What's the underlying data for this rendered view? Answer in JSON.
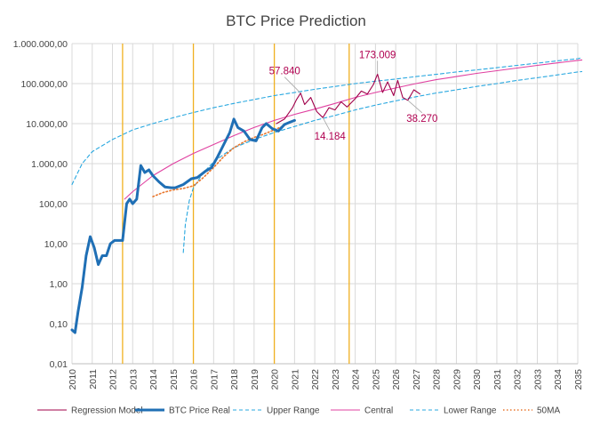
{
  "chart_data": {
    "type": "line",
    "title": "BTC Price Prediction",
    "yscale": "log",
    "ylim": [
      0.01,
      1000000
    ],
    "xlim": [
      2010,
      2035
    ],
    "y_ticks": [
      {
        "value": 0.01,
        "label": "0,01"
      },
      {
        "value": 0.1,
        "label": "0,10"
      },
      {
        "value": 1,
        "label": "1,00"
      },
      {
        "value": 10,
        "label": "10,00"
      },
      {
        "value": 100,
        "label": "100,00"
      },
      {
        "value": 1000,
        "label": "1.000,00"
      },
      {
        "value": 10000,
        "label": "10.000,00"
      },
      {
        "value": 100000,
        "label": "100.000,00"
      },
      {
        "value": 1000000,
        "label": "1.000.000,00"
      }
    ],
    "x_ticks": [
      "2010",
      "2011",
      "2012",
      "2013",
      "2014",
      "2015",
      "2016",
      "2017",
      "2018",
      "2019",
      "2020",
      "2021",
      "2022",
      "2023",
      "2024",
      "2025",
      "2026",
      "2027",
      "2028",
      "2029",
      "2030",
      "2031",
      "2032",
      "2033",
      "2034",
      "2035"
    ],
    "halving_lines": [
      2012.5,
      2016.0,
      2020.0,
      2023.7
    ],
    "series": [
      {
        "name": "Regression Model",
        "color": "#a0004a",
        "style": "solid-thin",
        "points": [
          [
            2020.1,
            10000
          ],
          [
            2020.5,
            13000
          ],
          [
            2020.9,
            25000
          ],
          [
            2021.1,
            40000
          ],
          [
            2021.3,
            57840
          ],
          [
            2021.5,
            30000
          ],
          [
            2021.8,
            45000
          ],
          [
            2022.1,
            20000
          ],
          [
            2022.4,
            14184
          ],
          [
            2022.7,
            25000
          ],
          [
            2023.0,
            22000
          ],
          [
            2023.3,
            35000
          ],
          [
            2023.6,
            26000
          ],
          [
            2024.0,
            42000
          ],
          [
            2024.3,
            65000
          ],
          [
            2024.6,
            55000
          ],
          [
            2024.9,
            95000
          ],
          [
            2025.1,
            173009
          ],
          [
            2025.35,
            60000
          ],
          [
            2025.6,
            110000
          ],
          [
            2025.9,
            50000
          ],
          [
            2026.1,
            120000
          ],
          [
            2026.35,
            45000
          ],
          [
            2026.6,
            38270
          ],
          [
            2026.9,
            70000
          ],
          [
            2027.2,
            55000
          ]
        ]
      },
      {
        "name": "BTC Price Real",
        "color": "#1f6fb5",
        "style": "solid-thick",
        "points": [
          [
            2010.0,
            0.07
          ],
          [
            2010.15,
            0.06
          ],
          [
            2010.3,
            0.2
          ],
          [
            2010.5,
            0.8
          ],
          [
            2010.7,
            5
          ],
          [
            2010.9,
            15
          ],
          [
            2011.1,
            8
          ],
          [
            2011.3,
            3
          ],
          [
            2011.5,
            5
          ],
          [
            2011.7,
            5
          ],
          [
            2011.9,
            10
          ],
          [
            2012.1,
            12
          ],
          [
            2012.3,
            12
          ],
          [
            2012.5,
            12
          ],
          [
            2012.7,
            100
          ],
          [
            2012.85,
            130
          ],
          [
            2013.0,
            100
          ],
          [
            2013.2,
            130
          ],
          [
            2013.4,
            900
          ],
          [
            2013.6,
            600
          ],
          [
            2013.8,
            700
          ],
          [
            2014.0,
            500
          ],
          [
            2014.3,
            350
          ],
          [
            2014.6,
            260
          ],
          [
            2014.9,
            250
          ],
          [
            2015.1,
            250
          ],
          [
            2015.5,
            300
          ],
          [
            2015.9,
            420
          ],
          [
            2016.2,
            450
          ],
          [
            2016.6,
            650
          ],
          [
            2016.9,
            800
          ],
          [
            2017.2,
            1500
          ],
          [
            2017.5,
            3000
          ],
          [
            2017.8,
            6000
          ],
          [
            2018.0,
            13000
          ],
          [
            2018.2,
            8000
          ],
          [
            2018.5,
            6500
          ],
          [
            2018.8,
            4000
          ],
          [
            2019.1,
            3700
          ],
          [
            2019.4,
            8000
          ],
          [
            2019.6,
            10000
          ],
          [
            2019.9,
            7500
          ],
          [
            2020.2,
            6500
          ],
          [
            2020.5,
            9500
          ],
          [
            2020.8,
            11000
          ],
          [
            2021.0,
            12000
          ]
        ]
      },
      {
        "name": "Upper Range",
        "color": "#29a8e0",
        "style": "dashed",
        "points": [
          [
            2010.0,
            300
          ],
          [
            2010.5,
            1000
          ],
          [
            2011.0,
            2000
          ],
          [
            2012.0,
            4000
          ],
          [
            2013.0,
            7000
          ],
          [
            2014.0,
            10000
          ],
          [
            2015.0,
            14000
          ],
          [
            2016.0,
            19000
          ],
          [
            2017.0,
            25000
          ],
          [
            2018.0,
            32000
          ],
          [
            2019.0,
            40000
          ],
          [
            2020.0,
            50000
          ],
          [
            2021.0,
            60000
          ],
          [
            2022.0,
            72000
          ],
          [
            2023.0,
            85000
          ],
          [
            2024.0,
            100000
          ],
          [
            2025.0,
            115000
          ],
          [
            2026.0,
            130000
          ],
          [
            2027.0,
            150000
          ],
          [
            2028.0,
            170000
          ],
          [
            2029.0,
            195000
          ],
          [
            2030.0,
            220000
          ],
          [
            2031.0,
            250000
          ],
          [
            2032.0,
            285000
          ],
          [
            2033.0,
            325000
          ],
          [
            2034.0,
            370000
          ],
          [
            2035.0,
            420000
          ],
          [
            2035.2,
            440000
          ]
        ]
      },
      {
        "name": "Central",
        "color": "#e040a0",
        "style": "solid-thin",
        "points": [
          [
            2012.6,
            130
          ],
          [
            2013.0,
            200
          ],
          [
            2014.0,
            500
          ],
          [
            2015.0,
            1000
          ],
          [
            2016.0,
            1800
          ],
          [
            2017.0,
            3000
          ],
          [
            2018.0,
            5000
          ],
          [
            2019.0,
            8000
          ],
          [
            2020.0,
            12000
          ],
          [
            2021.0,
            17000
          ],
          [
            2022.0,
            23000
          ],
          [
            2023.0,
            32000
          ],
          [
            2024.0,
            45000
          ],
          [
            2025.0,
            60000
          ],
          [
            2026.0,
            78000
          ],
          [
            2027.0,
            100000
          ],
          [
            2028.0,
            125000
          ],
          [
            2029.0,
            150000
          ],
          [
            2030.0,
            180000
          ],
          [
            2031.0,
            210000
          ],
          [
            2032.0,
            245000
          ],
          [
            2033.0,
            285000
          ],
          [
            2034.0,
            330000
          ],
          [
            2035.0,
            380000
          ],
          [
            2035.2,
            390000
          ]
        ]
      },
      {
        "name": "Lower Range",
        "color": "#29a8e0",
        "style": "dashed",
        "points": [
          [
            2015.5,
            6
          ],
          [
            2015.6,
            30
          ],
          [
            2015.8,
            120
          ],
          [
            2016.0,
            250
          ],
          [
            2016.5,
            600
          ],
          [
            2017.0,
            1100
          ],
          [
            2017.5,
            1700
          ],
          [
            2018.0,
            2500
          ],
          [
            2019.0,
            4000
          ],
          [
            2020.0,
            6000
          ],
          [
            2021.0,
            8500
          ],
          [
            2022.0,
            12000
          ],
          [
            2023.0,
            16000
          ],
          [
            2024.0,
            22000
          ],
          [
            2025.0,
            29000
          ],
          [
            2026.0,
            37000
          ],
          [
            2027.0,
            47000
          ],
          [
            2028.0,
            58000
          ],
          [
            2029.0,
            70000
          ],
          [
            2030.0,
            85000
          ],
          [
            2031.0,
            100000
          ],
          [
            2032.0,
            120000
          ],
          [
            2033.0,
            140000
          ],
          [
            2034.0,
            165000
          ],
          [
            2035.0,
            195000
          ],
          [
            2035.2,
            200000
          ]
        ]
      },
      {
        "name": "50MA",
        "color": "#e8772e",
        "style": "dotted",
        "points": [
          [
            2014.0,
            150
          ],
          [
            2014.5,
            190
          ],
          [
            2015.0,
            220
          ],
          [
            2015.5,
            240
          ],
          [
            2016.0,
            280
          ],
          [
            2016.5,
            450
          ],
          [
            2017.0,
            800
          ],
          [
            2017.5,
            1500
          ],
          [
            2018.0,
            2500
          ],
          [
            2018.5,
            3500
          ],
          [
            2019.0,
            4500
          ],
          [
            2019.5,
            5500
          ],
          [
            2020.0,
            7000
          ],
          [
            2020.5,
            9000
          ]
        ]
      }
    ],
    "annotations": [
      {
        "label": "57.840",
        "x": 2021.3,
        "y": 57840
      },
      {
        "label": "14.184",
        "x": 2022.4,
        "y": 14184
      },
      {
        "label": "173.009",
        "x": 2025.1,
        "y": 173009
      },
      {
        "label": "38.270",
        "x": 2026.6,
        "y": 38270
      }
    ]
  }
}
